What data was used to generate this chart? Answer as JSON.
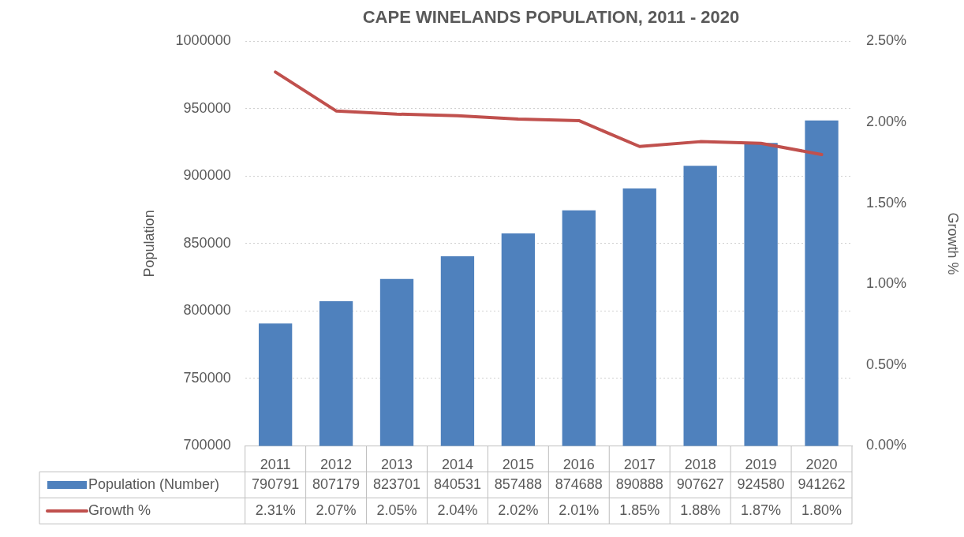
{
  "chart_data": {
    "type": "bar",
    "title": "CAPE WINELANDS POPULATION, 2011 - 2020",
    "ylabel": "Population",
    "y2label": "Growth %",
    "categories": [
      "2011",
      "2012",
      "2013",
      "2014",
      "2015",
      "2016",
      "2017",
      "2018",
      "2019",
      "2020"
    ],
    "series": [
      {
        "name": "Population (Number)",
        "color": "#4f81bd",
        "values": [
          790791,
          807179,
          823701,
          840531,
          857488,
          874688,
          890888,
          907627,
          924580,
          941262
        ],
        "value_labels": [
          "790791",
          "807179",
          "823701",
          "840531",
          "857488",
          "874688",
          "890888",
          "907627",
          "924580",
          "941262"
        ]
      },
      {
        "name": "Growth %",
        "type": "line",
        "axis": "y2",
        "color": "#c0504d",
        "values": [
          2.31,
          2.07,
          2.05,
          2.04,
          2.02,
          2.01,
          1.85,
          1.88,
          1.87,
          1.8
        ],
        "value_labels": [
          "2.31%",
          "2.07%",
          "2.05%",
          "2.04%",
          "2.02%",
          "2.01%",
          "1.85%",
          "1.88%",
          "1.87%",
          "1.80%"
        ]
      }
    ],
    "ylim": [
      700000,
      1000000
    ],
    "yticks": [
      700000,
      750000,
      800000,
      850000,
      900000,
      950000,
      1000000
    ],
    "y2lim": [
      0,
      2.5
    ],
    "y2ticks": [
      {
        "value": 0,
        "label": "0.00%"
      },
      {
        "value": 0.5,
        "label": "0.50%"
      },
      {
        "value": 1,
        "label": "1.00%"
      },
      {
        "value": 1.5,
        "label": "1.50%"
      },
      {
        "value": 2,
        "label": "2.00%"
      },
      {
        "value": 2.5,
        "label": "2.50%"
      }
    ],
    "grid": "y",
    "legend": "bottom",
    "marker": "none",
    "line_style": "solid"
  }
}
